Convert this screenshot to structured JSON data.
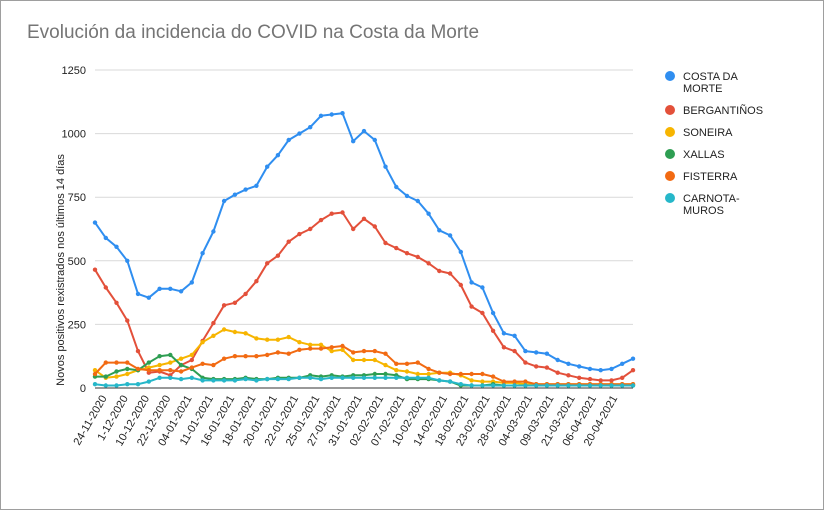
{
  "chart_data": {
    "type": "line",
    "title": "Evolución da incidencia do COVID na Costa da Morte",
    "xlabel": "",
    "ylabel": "Novos positivos rexistrados nos últimos 14 días",
    "ylim": [
      0,
      1250
    ],
    "yticks": [
      "0",
      "250",
      "500",
      "750",
      "1000",
      "1250"
    ],
    "xtick_labels": [
      "24-11-2020",
      "1-12-2020",
      "10-12-2020",
      "22-12-2020",
      "04-01-2021",
      "11-01-2021",
      "16-01-2021",
      "18-01-2021",
      "20-01-2021",
      "22-01-2021",
      "25-01-2021",
      "27-01-2021",
      "31-01-2021",
      "02-02-2021",
      "07-02-2021",
      "10-02-2021",
      "14-02-2021",
      "18-02-2021",
      "23-02-2021",
      "28-02-2021",
      "04-03-2021",
      "09-03-2021",
      "21-03-2021",
      "06-04-2021",
      "20-04-2021"
    ],
    "grid": true,
    "legend_position": "right",
    "series": [
      {
        "name": "COSTA DA MORTE",
        "legend_lines": [
          "COSTA DA",
          "MORTE"
        ],
        "color": "#2f8ef0",
        "values": [
          650,
          590,
          555,
          500,
          370,
          355,
          390,
          390,
          380,
          415,
          530,
          615,
          735,
          760,
          780,
          795,
          870,
          915,
          975,
          1000,
          1025,
          1070,
          1075,
          1080,
          970,
          1010,
          975,
          870,
          790,
          755,
          735,
          685,
          620,
          600,
          535,
          415,
          395,
          295,
          215,
          205,
          145,
          140,
          135,
          110,
          95,
          85,
          75,
          70,
          75,
          95,
          115
        ]
      },
      {
        "name": "BERGANTIÑOS",
        "legend_lines": [
          "BERGANTIÑOS"
        ],
        "color": "#e3503a",
        "values": [
          465,
          395,
          335,
          265,
          145,
          60,
          65,
          50,
          90,
          110,
          185,
          255,
          325,
          335,
          370,
          420,
          490,
          520,
          575,
          605,
          625,
          660,
          685,
          690,
          625,
          665,
          635,
          570,
          550,
          530,
          515,
          490,
          460,
          450,
          405,
          320,
          295,
          225,
          160,
          145,
          100,
          85,
          80,
          60,
          50,
          40,
          35,
          30,
          30,
          40,
          70
        ]
      },
      {
        "name": "SONEIRA",
        "legend_lines": [
          "SONEIRA"
        ],
        "color": "#f7b500",
        "values": [
          70,
          40,
          45,
          55,
          70,
          80,
          90,
          100,
          115,
          130,
          180,
          205,
          230,
          220,
          215,
          195,
          190,
          190,
          200,
          180,
          170,
          170,
          145,
          150,
          110,
          110,
          110,
          90,
          70,
          65,
          55,
          55,
          60,
          60,
          50,
          30,
          25,
          25,
          20,
          20,
          15,
          15,
          15,
          15,
          15,
          15,
          15,
          15,
          15,
          15,
          15
        ]
      },
      {
        "name": "XALLAS",
        "legend_lines": [
          "XALLAS"
        ],
        "color": "#2e9e52",
        "values": [
          45,
          45,
          65,
          75,
          70,
          100,
          125,
          130,
          90,
          75,
          40,
          35,
          35,
          35,
          40,
          35,
          35,
          40,
          40,
          40,
          50,
          45,
          50,
          45,
          50,
          50,
          55,
          55,
          50,
          35,
          35,
          35,
          30,
          25,
          10,
          10,
          10,
          15,
          10,
          10,
          10,
          10,
          10,
          10,
          10,
          10,
          10,
          10,
          10,
          10,
          10
        ]
      },
      {
        "name": "FISTERRA",
        "legend_lines": [
          "FISTERRA"
        ],
        "color": "#f26a12",
        "values": [
          55,
          100,
          100,
          100,
          75,
          70,
          70,
          70,
          65,
          80,
          95,
          90,
          115,
          125,
          125,
          125,
          130,
          140,
          135,
          150,
          155,
          155,
          160,
          165,
          140,
          145,
          145,
          135,
          95,
          95,
          100,
          75,
          60,
          55,
          55,
          55,
          55,
          45,
          25,
          25,
          25,
          15,
          15,
          15,
          15,
          15,
          15,
          15,
          15,
          15,
          15
        ]
      },
      {
        "name": "CARNOTA-MUROS",
        "legend_lines": [
          "CARNOTA-",
          "MUROS"
        ],
        "color": "#26b7c9",
        "values": [
          15,
          10,
          10,
          15,
          15,
          25,
          40,
          40,
          35,
          40,
          30,
          30,
          30,
          30,
          35,
          30,
          35,
          35,
          35,
          40,
          40,
          35,
          40,
          40,
          40,
          40,
          40,
          40,
          40,
          40,
          40,
          40,
          30,
          25,
          15,
          10,
          10,
          10,
          10,
          10,
          10,
          10,
          10,
          10,
          10,
          10,
          10,
          10,
          10,
          10,
          10
        ]
      }
    ]
  }
}
